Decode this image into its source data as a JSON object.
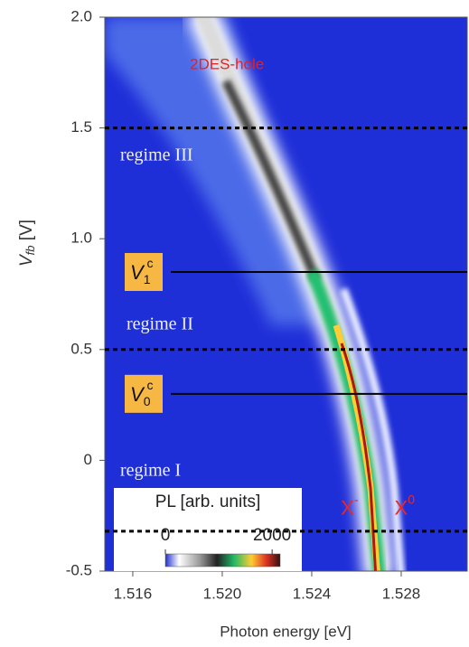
{
  "chart_data": {
    "type": "heatmap",
    "xlabel": "Photon energy [eV]",
    "ylabel": {
      "text": "V",
      "sub": "fb",
      "unit": " [V]"
    },
    "xlim": [
      1.51475,
      1.53095
    ],
    "ylim": [
      -0.5,
      2.0
    ],
    "xticks": [
      1.516,
      {
        "value": 1.52,
        "label": "1.520"
      },
      1.524,
      1.528
    ],
    "yticks": [
      -0.5,
      0,
      {
        "value": 0.5,
        "label": "0.5"
      },
      {
        "value": 1,
        "label": "1.0"
      },
      {
        "value": 1.5,
        "label": "1.5"
      },
      {
        "value": 2,
        "label": "2.0"
      }
    ],
    "annotations": [
      "2DES-hole",
      "regime III",
      "regime II",
      "regime I"
    ],
    "hlines": [
      {
        "value": 1.5,
        "style": "dashed"
      },
      {
        "value": 0.5,
        "style": "dashed"
      },
      {
        "value": -0.32,
        "style": "dashed"
      },
      {
        "value": 0.85,
        "style": "solid",
        "xstart": 1.5177,
        "label": {
          "text": "V",
          "sub": "1",
          "sup": "c"
        }
      },
      {
        "value": 0.3,
        "style": "solid",
        "xstart": 1.5177,
        "label": {
          "text": "V",
          "sub": "0",
          "sup": "c"
        }
      }
    ],
    "peak_labels": [
      {
        "text": "X",
        "sup": "-",
        "x": 1.5253,
        "y": -0.22
      },
      {
        "text": "X",
        "sup": "0",
        "x": 1.5277,
        "y": -0.22
      }
    ],
    "colorbar": {
      "label": "PL [arb. units]",
      "lim": [
        0,
        2150
      ],
      "ticks": [
        0,
        2000
      ]
    }
  }
}
